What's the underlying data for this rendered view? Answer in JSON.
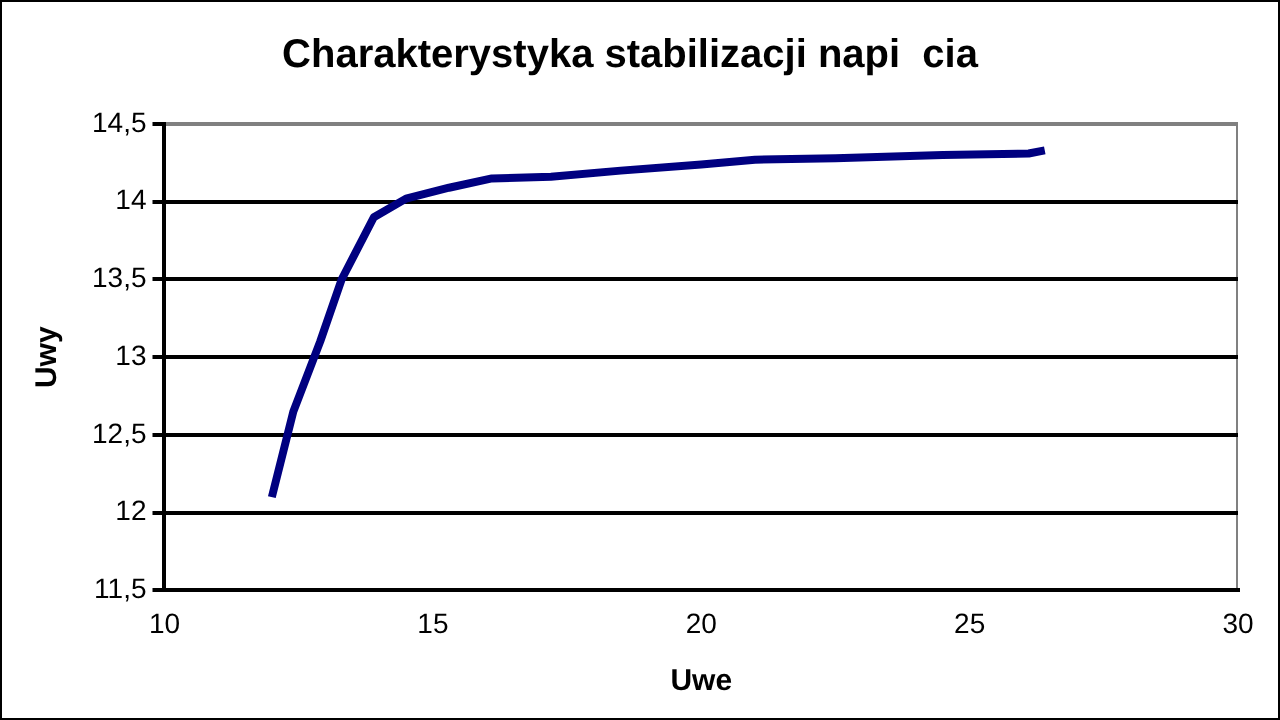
{
  "chart_data": {
    "type": "line",
    "title": "Charakterystyka stabilizacji napi  cia",
    "xlabel": "Uwe",
    "ylabel": "Uwy",
    "x": [
      12,
      12.4,
      12.9,
      13.3,
      13.9,
      14.5,
      15.3,
      16.1,
      17.2,
      18.5,
      20,
      21,
      22.5,
      24.5,
      26.1,
      26.4
    ],
    "series": [
      {
        "color": "#000080",
        "values": [
          12.1,
          12.65,
          13.1,
          13.5,
          13.9,
          14.02,
          14.09,
          14.15,
          14.16,
          14.2,
          14.24,
          14.27,
          14.28,
          14.3,
          14.31,
          14.33
        ]
      }
    ],
    "xlim": [
      10,
      30
    ],
    "xticks": [
      10,
      15,
      20,
      25,
      30
    ],
    "ylim": [
      11.5,
      14.5
    ],
    "yticks": [
      {
        "value": 11.5,
        "label": "11,5"
      },
      {
        "value": 12,
        "label": "12"
      },
      {
        "value": 12.5,
        "label": "12,5"
      },
      {
        "value": 13,
        "label": "13"
      },
      {
        "value": 13.5,
        "label": "13,5"
      },
      {
        "value": 14,
        "label": "14"
      },
      {
        "value": 14.5,
        "label": "14,5"
      }
    ],
    "grid": "y",
    "legend": false,
    "marker": "none",
    "line_style": "solid"
  }
}
